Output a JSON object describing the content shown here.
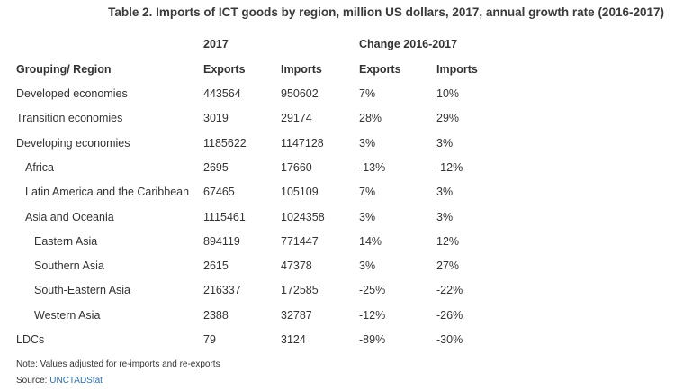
{
  "title": "Table 2. Imports of ICT goods by region, million US dollars, 2017, annual growth rate (2016-2017)",
  "group_headers": {
    "year": "2017",
    "change": "Change 2016-2017"
  },
  "columns": {
    "region": "Grouping/ Region",
    "exports_2017": "Exports",
    "imports_2017": "Imports",
    "exports_change": "Exports",
    "imports_change": "Imports"
  },
  "rows": [
    {
      "region": "Developed economies",
      "indent": 0,
      "exports": "443564",
      "imports": "950602",
      "exports_change": "7%",
      "imports_change": "10%"
    },
    {
      "region": "Transition economies",
      "indent": 0,
      "exports": "3019",
      "imports": "29174",
      "exports_change": "28%",
      "imports_change": "29%"
    },
    {
      "region": "Developing economies",
      "indent": 0,
      "exports": "1185622",
      "imports": "1147128",
      "exports_change": "3%",
      "imports_change": "3%"
    },
    {
      "region": "Africa",
      "indent": 1,
      "exports": "2695",
      "imports": "17660",
      "exports_change": "-13%",
      "imports_change": "-12%"
    },
    {
      "region": "Latin America and the Caribbean",
      "indent": 1,
      "exports": "67465",
      "imports": "105109",
      "exports_change": "7%",
      "imports_change": "3%"
    },
    {
      "region": "Asia and Oceania",
      "indent": 1,
      "exports": "1115461",
      "imports": "1024358",
      "exports_change": "3%",
      "imports_change": "3%"
    },
    {
      "region": "Eastern Asia",
      "indent": 2,
      "exports": "894119",
      "imports": "771447",
      "exports_change": "14%",
      "imports_change": "12%"
    },
    {
      "region": "Southern Asia",
      "indent": 2,
      "exports": "2615",
      "imports": "47378",
      "exports_change": "3%",
      "imports_change": "27%"
    },
    {
      "region": "South-Eastern Asia",
      "indent": 2,
      "exports": "216337",
      "imports": "172585",
      "exports_change": "-25%",
      "imports_change": "-22%"
    },
    {
      "region": "Western Asia",
      "indent": 2,
      "exports": "2388",
      "imports": "32787",
      "exports_change": "-12%",
      "imports_change": "-26%"
    },
    {
      "region": "LDCs",
      "indent": 0,
      "exports": "79",
      "imports": "3124",
      "exports_change": "-89%",
      "imports_change": "-30%"
    }
  ],
  "footer": {
    "note": "Note: Values adjusted for re-imports and re-exports",
    "source_label": "Source: ",
    "source_link": "UNCTADStat",
    "link_color": "#2a6ebb"
  }
}
